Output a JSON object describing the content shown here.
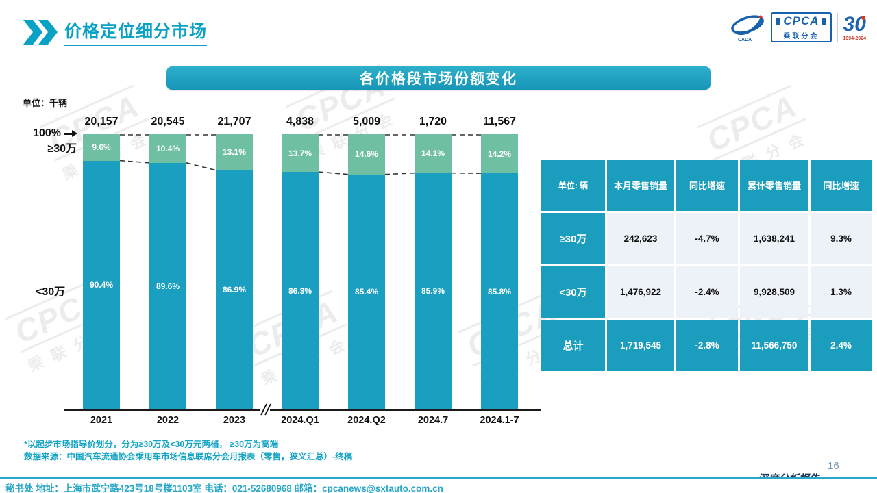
{
  "header": {
    "title": "价格定位细分市场"
  },
  "logo": {
    "org_abbr": "CADA",
    "brand": "CPCA",
    "brand_sub": "乘联分会",
    "anniversary_number": "30",
    "anniversary_years": "1994-2024"
  },
  "banner": {
    "title": "各价格段市场份额变化"
  },
  "chart_data": {
    "type": "bar",
    "variant": "100-percent-stacked-column",
    "title": "各价格段市场份额变化",
    "unit_label": "单位：千辆",
    "top_axis_label": "100%",
    "categories": [
      "2021",
      "2022",
      "2023",
      "2024.Q1",
      "2024.Q2",
      "2024.7",
      "2024.1-7"
    ],
    "bar_totals": [
      "20,157",
      "20,545",
      "21,707",
      "4,838",
      "5,009",
      "1,720",
      "11,567"
    ],
    "series": [
      {
        "name": "≥30万",
        "color": "#6fc0a2",
        "values": [
          9.6,
          10.4,
          13.1,
          13.7,
          14.6,
          14.1,
          14.2
        ]
      },
      {
        "name": "<30万",
        "color": "#1b9fc0",
        "values": [
          90.4,
          89.6,
          86.9,
          86.3,
          85.4,
          85.9,
          85.8
        ]
      }
    ],
    "left_labels": {
      "top": "≥30万",
      "bottom": "<30万"
    },
    "axis_break_between": [
      "2023",
      "2024.Q1"
    ],
    "ylim": [
      0,
      100
    ],
    "grid": false,
    "legend_position": "none"
  },
  "table": {
    "columns": [
      "单位: 辆",
      "本月零售销量",
      "同比增速",
      "累计零售销量",
      "同比增速"
    ],
    "rows": [
      {
        "label": "≥30万",
        "cells": [
          "242,623",
          "-4.7%",
          "1,638,241",
          "9.3%"
        ],
        "highlight": false
      },
      {
        "label": "<30万",
        "cells": [
          "1,476,922",
          "-2.4%",
          "9,928,509",
          "1.3%"
        ],
        "highlight": false
      },
      {
        "label": "总计",
        "cells": [
          "1,719,545",
          "-2.8%",
          "11,566,750",
          "2.4%"
        ],
        "highlight": true
      }
    ]
  },
  "footnotes": {
    "line1": "*以起步市场指导价划分，分为≥30万及<30万元两档， ≥30万为高端",
    "line2": "数据来源：中国汽车流通协会乘用车市场信息联席分会月报表（零售，狭义汇总）-终稿"
  },
  "footer": {
    "info": "秘书处  地址：上海市武宁路423号18号楼1103室  电话：021-52680968   邮箱：cpcanews@sxtauto.com.cn",
    "report_label": "深度分析报告",
    "page_number": "16"
  },
  "watermark": {
    "text": "CPCA",
    "sub": "乘联分会"
  }
}
